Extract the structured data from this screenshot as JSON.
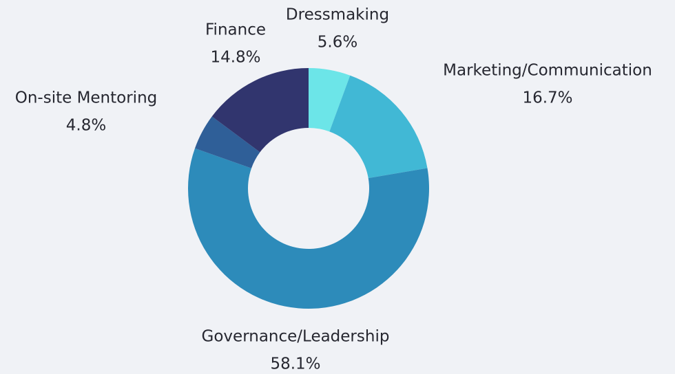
{
  "chart_data": {
    "type": "donut",
    "categories": [
      "Dressmaking",
      "Marketing/Communication",
      "Governance/Leadership",
      "On-site Mentoring",
      "Finance"
    ],
    "values": [
      5.6,
      16.7,
      58.1,
      4.8,
      14.8
    ],
    "value_labels": [
      "5.6%",
      "16.7%",
      "58.1%",
      "4.8%",
      "14.8%"
    ],
    "colors": [
      "#6ce5e8",
      "#41b8d5",
      "#2d8bba",
      "#2f5f98",
      "#31356e"
    ]
  }
}
